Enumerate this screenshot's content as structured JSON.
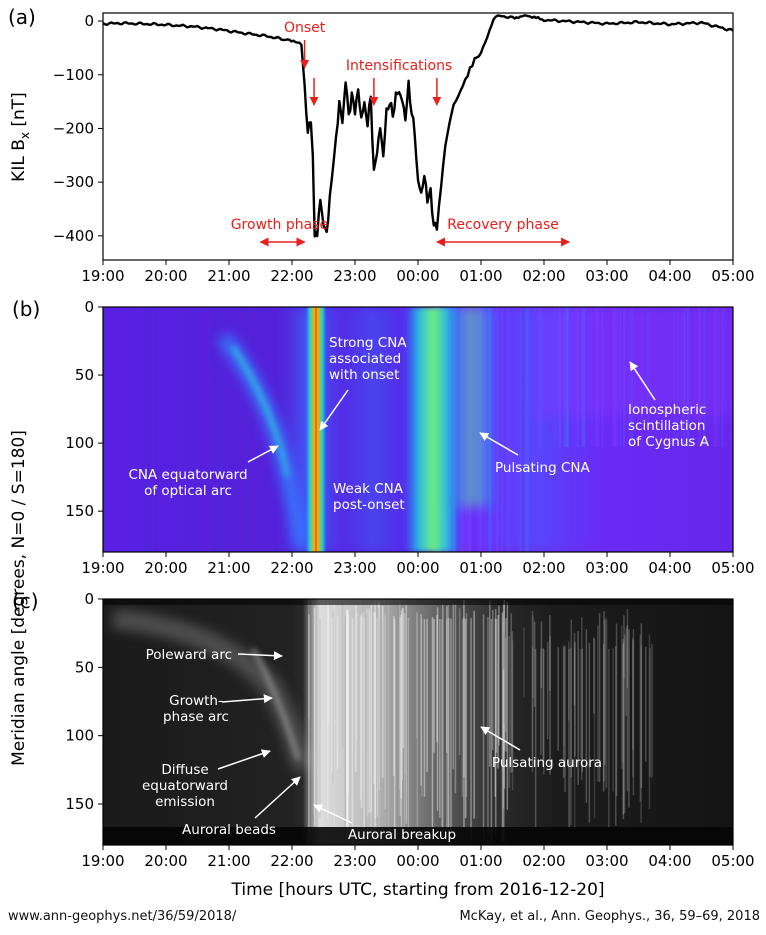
{
  "chart_data": [
    {
      "type": "line",
      "panel_label": "(a)",
      "ylabel_main": "KIL B",
      "ylabel_sub": "x",
      "ylabel_unit": " [nT]",
      "x_ticks": [
        "19:00",
        "20:00",
        "21:00",
        "22:00",
        "23:00",
        "00:00",
        "01:00",
        "02:00",
        "03:00",
        "04:00",
        "05:00"
      ],
      "xlim_hours": [
        19,
        29
      ],
      "y_ticks": [
        "0",
        "−100",
        "−200",
        "−300",
        "−400"
      ],
      "ylim": [
        -445,
        15
      ],
      "series": [
        {
          "x": [
            19.0,
            19.3,
            19.6,
            20.0,
            20.4,
            20.8,
            21.2,
            21.6,
            21.9,
            22.05,
            22.15,
            22.2,
            22.25,
            22.3,
            22.33,
            22.36,
            22.4,
            22.45,
            22.5,
            22.55,
            22.6,
            22.7,
            22.75,
            22.8,
            22.85,
            22.9,
            22.95,
            23.0,
            23.05,
            23.1,
            23.15,
            23.2,
            23.25,
            23.3,
            23.35,
            23.4,
            23.45,
            23.5,
            23.55,
            23.6,
            23.65,
            23.7,
            23.75,
            23.8,
            23.85,
            23.9,
            23.95,
            24.0,
            24.05,
            24.1,
            24.15,
            24.2,
            24.25,
            24.3,
            24.4,
            24.5,
            24.6,
            24.75,
            24.9,
            25.0,
            25.1,
            25.2,
            25.3,
            25.5,
            25.75,
            26.0,
            26.3,
            26.6,
            27.0,
            27.5,
            28.0,
            28.5,
            29.0
          ],
          "y": [
            -5,
            -4,
            -5,
            -7,
            -10,
            -15,
            -22,
            -28,
            -35,
            -38,
            -45,
            -120,
            -210,
            -180,
            -250,
            -395,
            -400,
            -330,
            -380,
            -395,
            -330,
            -220,
            -150,
            -190,
            -110,
            -175,
            -140,
            -165,
            -130,
            -180,
            -155,
            -190,
            -140,
            -285,
            -240,
            -200,
            -250,
            -170,
            -150,
            -175,
            -140,
            -130,
            -150,
            -180,
            -120,
            -170,
            -210,
            -300,
            -320,
            -290,
            -330,
            -320,
            -380,
            -385,
            -270,
            -180,
            -150,
            -110,
            -70,
            -60,
            -30,
            5,
            10,
            6,
            10,
            2,
            0,
            -2,
            -5,
            -2,
            -6,
            -3,
            -18
          ],
          "description_x_note": "hours after 00:00 2016-12-20 UTC"
        }
      ],
      "annotations": [
        "Onset",
        "Intensifications",
        "Growth phase",
        "Recovery phase"
      ],
      "annotation_hours": {
        "onset": 22.2,
        "intens": [
          22.35,
          23.3,
          24.3
        ],
        "growth": [
          21.5,
          22.2
        ],
        "recovery": [
          24.3,
          26.4
        ]
      },
      "annotation_color": "#e8201c"
    },
    {
      "type": "heatmap",
      "panel_label": "(b)",
      "x_ticks": [
        "19:00",
        "20:00",
        "21:00",
        "22:00",
        "23:00",
        "00:00",
        "01:00",
        "02:00",
        "03:00",
        "04:00",
        "05:00"
      ],
      "y_ticks": [
        "0",
        "50",
        "100",
        "150"
      ],
      "ylim": [
        0,
        180
      ],
      "colormap": [
        "#4b12c6",
        "#6a2bff",
        "#2f7cff",
        "#1fd1d1",
        "#77f276",
        "#ffb000",
        "#ff2a00"
      ],
      "annotations": {
        "cna_equatorward": "CNA equatorward\nof optical arc",
        "strong_cna": "Strong CNA\nassociated\nwith onset",
        "weak_cna": "Weak CNA\npost-onset",
        "pulsating_cna": "Pulsating CNA",
        "scintillation": "Ionospheric\nscintillation\nof Cygnus A"
      }
    },
    {
      "type": "heatmap",
      "panel_label": "(c)",
      "x_ticks": [
        "19:00",
        "20:00",
        "21:00",
        "22:00",
        "23:00",
        "00:00",
        "01:00",
        "02:00",
        "03:00",
        "04:00",
        "05:00"
      ],
      "y_ticks": [
        "0",
        "50",
        "100",
        "150"
      ],
      "ylim": [
        0,
        180
      ],
      "xlabel": "Time [hours UTC, starting from 2016-12-20]",
      "shared_ylabel": "Meridian angle [degrees, N=0 / S=180]",
      "colormap": [
        "#0a0a0a",
        "#ffffff"
      ],
      "annotations": {
        "poleward_arc": "Poleward arc",
        "growth_phase_arc": "Growth-\nphase arc",
        "diffuse": "Diffuse\nequatorward\nemission",
        "beads": "Auroral beads",
        "breakup": "Auroral breakup",
        "pulsating": "Pulsating aurora"
      }
    }
  ],
  "footer": {
    "left": "www.ann-geophys.net/36/59/2018/",
    "right": "McKay, et al., Ann. Geophys., 36, 59–69, 2018"
  }
}
